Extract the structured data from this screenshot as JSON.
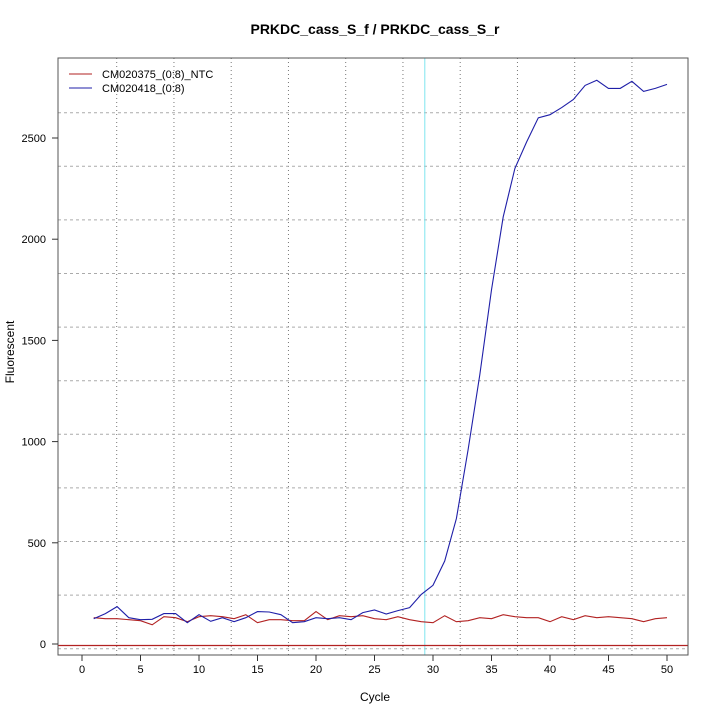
{
  "chart_data": {
    "type": "line",
    "title": "PRKDC_cass_S_f / PRKDC_cass_S_r",
    "xlabel": "Cycle",
    "ylabel": "Fluorescent",
    "xlim": [
      -2,
      52
    ],
    "ylim": [
      -30,
      2870
    ],
    "xticks": [
      0,
      5,
      10,
      15,
      20,
      25,
      30,
      35,
      40,
      45,
      50
    ],
    "yticks": [
      0,
      500,
      1000,
      1500,
      2000,
      2500
    ],
    "grid": true,
    "legend_position": "top-left",
    "threshold_y": 0,
    "threshold_color": "#b22222",
    "vertical_marker_x": 29.3,
    "vertical_marker_color": "#7fe5f0",
    "x": [
      1,
      2,
      3,
      4,
      5,
      6,
      7,
      8,
      9,
      10,
      11,
      12,
      13,
      14,
      15,
      16,
      17,
      18,
      19,
      20,
      21,
      22,
      23,
      24,
      25,
      26,
      27,
      28,
      29,
      30,
      31,
      32,
      33,
      34,
      35,
      36,
      37,
      38,
      39,
      40,
      41,
      42,
      43,
      44,
      45,
      46,
      47,
      48,
      49,
      50
    ],
    "series": [
      {
        "name": "CM020375_(0:8)_NTC",
        "color": "#b22222",
        "values": [
          130,
          125,
          125,
          120,
          115,
          95,
          135,
          130,
          110,
          135,
          140,
          135,
          125,
          145,
          105,
          120,
          120,
          115,
          115,
          160,
          120,
          140,
          135,
          140,
          125,
          120,
          135,
          120,
          110,
          105,
          140,
          110,
          115,
          130,
          125,
          145,
          135,
          130,
          130,
          110,
          135,
          120,
          140,
          130,
          135,
          130,
          125,
          110,
          125,
          130
        ]
      },
      {
        "name": "CM020418_(0:8)",
        "color": "#1f1fa8",
        "values": [
          125,
          150,
          185,
          130,
          120,
          122,
          150,
          150,
          105,
          145,
          112,
          130,
          110,
          130,
          160,
          158,
          145,
          105,
          110,
          130,
          125,
          130,
          120,
          155,
          168,
          148,
          165,
          180,
          245,
          290,
          410,
          620,
          960,
          1330,
          1750,
          2110,
          2350,
          2480,
          2600,
          2615,
          2650,
          2690,
          2760,
          2785,
          2745,
          2745,
          2780,
          2730,
          2745,
          2765
        ]
      }
    ]
  }
}
